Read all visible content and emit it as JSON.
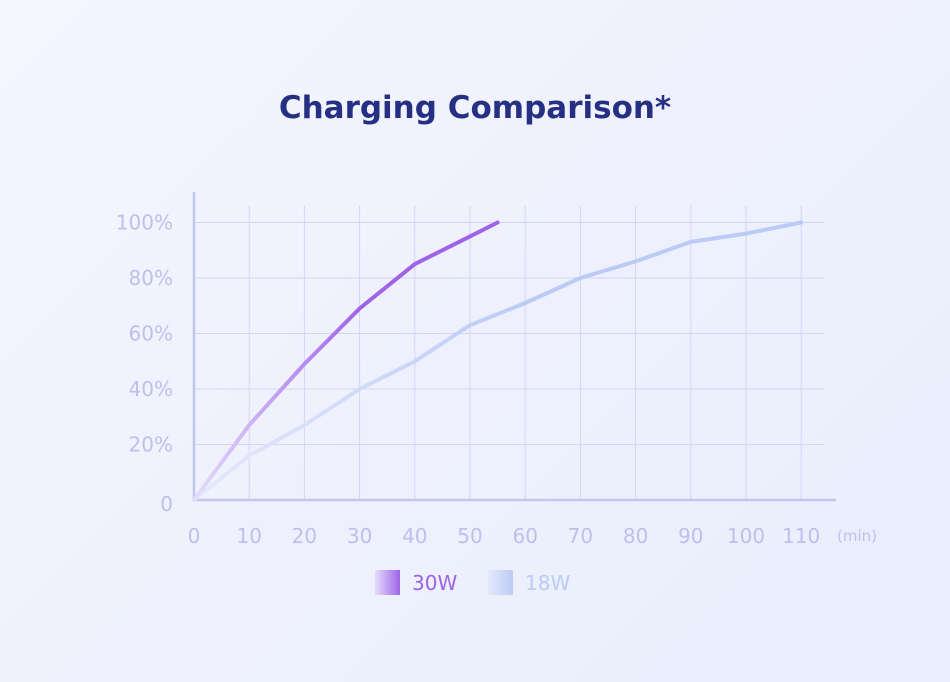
{
  "chart_data": {
    "type": "line",
    "title": "Charging Comparison*",
    "x_unit_label": "(min)",
    "x_ticks": [
      0,
      10,
      20,
      30,
      40,
      50,
      60,
      70,
      80,
      90,
      100,
      110
    ],
    "y_ticks": [
      {
        "value": 0,
        "label": "0"
      },
      {
        "value": 20,
        "label": "20%"
      },
      {
        "value": 40,
        "label": "40%"
      },
      {
        "value": 60,
        "label": "60%"
      },
      {
        "value": 80,
        "label": "80%"
      },
      {
        "value": 100,
        "label": "100%"
      }
    ],
    "xlim": [
      0,
      115
    ],
    "ylim": [
      0,
      100
    ],
    "grid": true,
    "legend_position": "bottom-center",
    "series": [
      {
        "name": "30W",
        "color": "#9f63e8",
        "color_start": "#e4dcfa",
        "x": [
          0,
          10,
          20,
          30,
          40,
          50,
          55
        ],
        "y": [
          0,
          27,
          49,
          69,
          85,
          95,
          100
        ]
      },
      {
        "name": "18W",
        "color": "#bccbf6",
        "color_start": "#e4e9fc",
        "x": [
          0,
          10,
          20,
          30,
          40,
          50,
          60,
          70,
          80,
          90,
          100,
          110
        ],
        "y": [
          0,
          16,
          27,
          40,
          50,
          63,
          71,
          80,
          86,
          93,
          96,
          100
        ]
      }
    ]
  }
}
